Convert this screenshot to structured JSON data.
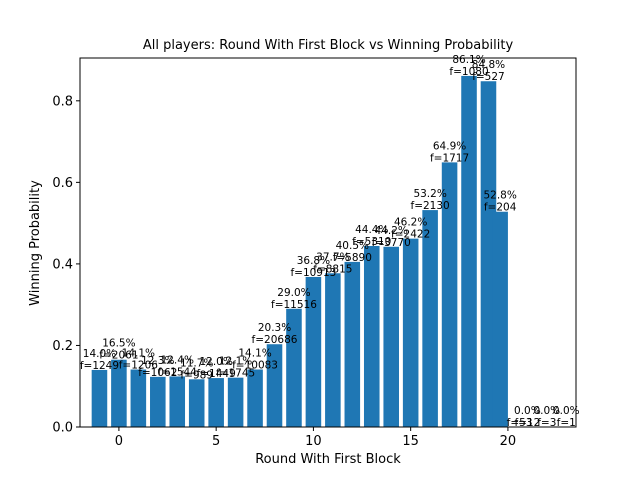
{
  "chart_data": {
    "type": "bar",
    "title": "All players: Round With First Block vs Winning Probability",
    "xlabel": "Round With First Block",
    "ylabel": "Winning Probability",
    "xlim": [
      -2.0,
      23.5
    ],
    "ylim": [
      0.0,
      0.905
    ],
    "xticks": [
      0,
      5,
      10,
      15,
      20
    ],
    "yticks": [
      0.0,
      0.2,
      0.4,
      0.6,
      0.8
    ],
    "xtick_labels": [
      "0",
      "5",
      "10",
      "15",
      "20"
    ],
    "ytick_labels": [
      "0.0",
      "0.2",
      "0.4",
      "0.6",
      "0.8"
    ],
    "grid": false,
    "color": "#1f77b4",
    "bars": [
      {
        "x": -1,
        "value": 0.14,
        "label_pct": "14.0%",
        "label_f": "f=1249"
      },
      {
        "x": 0,
        "value": 0.165,
        "label_pct": "16.5%",
        "label_f": "f=2061"
      },
      {
        "x": 1,
        "value": 0.141,
        "label_pct": "14.1%",
        "label_f": "f=1206"
      },
      {
        "x": 2,
        "value": 0.123,
        "label_pct": "12.3%",
        "label_f": "f=1062"
      },
      {
        "x": 3,
        "value": 0.124,
        "label_pct": "12.4%",
        "label_f": "f=1544"
      },
      {
        "x": 4,
        "value": 0.117,
        "label_pct": "11.7%",
        "label_f": "f=989"
      },
      {
        "x": 5,
        "value": 0.12,
        "label_pct": "12.0%",
        "label_f": "f=1449"
      },
      {
        "x": 6,
        "value": 0.121,
        "label_pct": "12.1%",
        "label_f": "f=1745"
      },
      {
        "x": 7,
        "value": 0.141,
        "label_pct": "14.1%",
        "label_f": "f=10083"
      },
      {
        "x": 8,
        "value": 0.203,
        "label_pct": "20.3%",
        "label_f": "f=20686"
      },
      {
        "x": 9,
        "value": 0.29,
        "label_pct": "29.0%",
        "label_f": "f=11516"
      },
      {
        "x": 10,
        "value": 0.368,
        "label_pct": "36.8%",
        "label_f": "f=10913"
      },
      {
        "x": 11,
        "value": 0.377,
        "label_pct": "37.7%",
        "label_f": "f=8815"
      },
      {
        "x": 12,
        "value": 0.405,
        "label_pct": "40.5%",
        "label_f": "f=5890"
      },
      {
        "x": 13,
        "value": 0.444,
        "label_pct": "44.4%",
        "label_f": "f=5310"
      },
      {
        "x": 14,
        "value": 0.442,
        "label_pct": "44.2%",
        "label_f": "f=3770"
      },
      {
        "x": 15,
        "value": 0.462,
        "label_pct": "46.2%",
        "label_f": "f=2422"
      },
      {
        "x": 16,
        "value": 0.532,
        "label_pct": "53.2%",
        "label_f": "f=2130"
      },
      {
        "x": 17,
        "value": 0.649,
        "label_pct": "64.9%",
        "label_f": "f=1717"
      },
      {
        "x": 18,
        "value": 0.861,
        "label_pct": "86.1%",
        "label_f": "f=1080"
      },
      {
        "x": 19,
        "value": 0.848,
        "label_pct": "84.8%",
        "label_f": "f=527"
      },
      {
        "x": 19.6,
        "value": 0.528,
        "label_pct": "52.8%",
        "label_f": "f=204"
      },
      {
        "x": 20.6,
        "value": 0.0,
        "label_pct": "",
        "label_f": "f=53"
      },
      {
        "x": 21,
        "value": 0.0,
        "label_pct": "0.0%",
        "label_f": "f=12"
      },
      {
        "x": 22,
        "value": 0.0,
        "label_pct": "0.0%",
        "label_f": "f=3"
      },
      {
        "x": 23,
        "value": 0.0,
        "label_pct": "0.0%",
        "label_f": "f=1"
      }
    ]
  }
}
